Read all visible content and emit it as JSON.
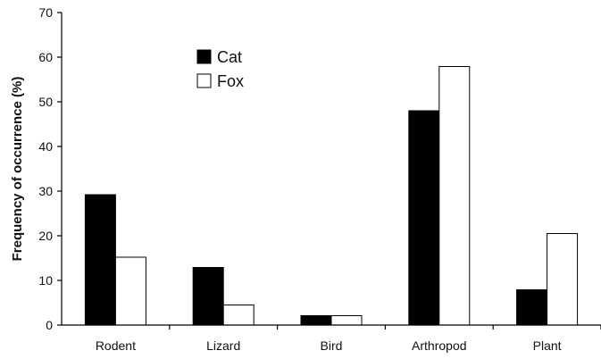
{
  "chart_data": {
    "type": "bar",
    "categories": [
      "Rodent",
      "Lizard",
      "Bird",
      "Arthropod",
      "Plant"
    ],
    "series": [
      {
        "name": "Cat",
        "values": [
          29.2,
          12.9,
          2.1,
          48.0,
          7.9
        ],
        "color": "#000000"
      },
      {
        "name": "Fox",
        "values": [
          15.2,
          4.5,
          2.1,
          57.9,
          20.5
        ],
        "color": "#ffffff"
      }
    ],
    "title": "",
    "xlabel": "",
    "ylabel": "Frequency of occurrence (%)",
    "ylim": [
      0,
      70
    ],
    "yticks": [
      "0",
      "10",
      "20",
      "30",
      "40",
      "50",
      "60",
      "70"
    ],
    "grid": false,
    "legend_position": "top-center"
  }
}
